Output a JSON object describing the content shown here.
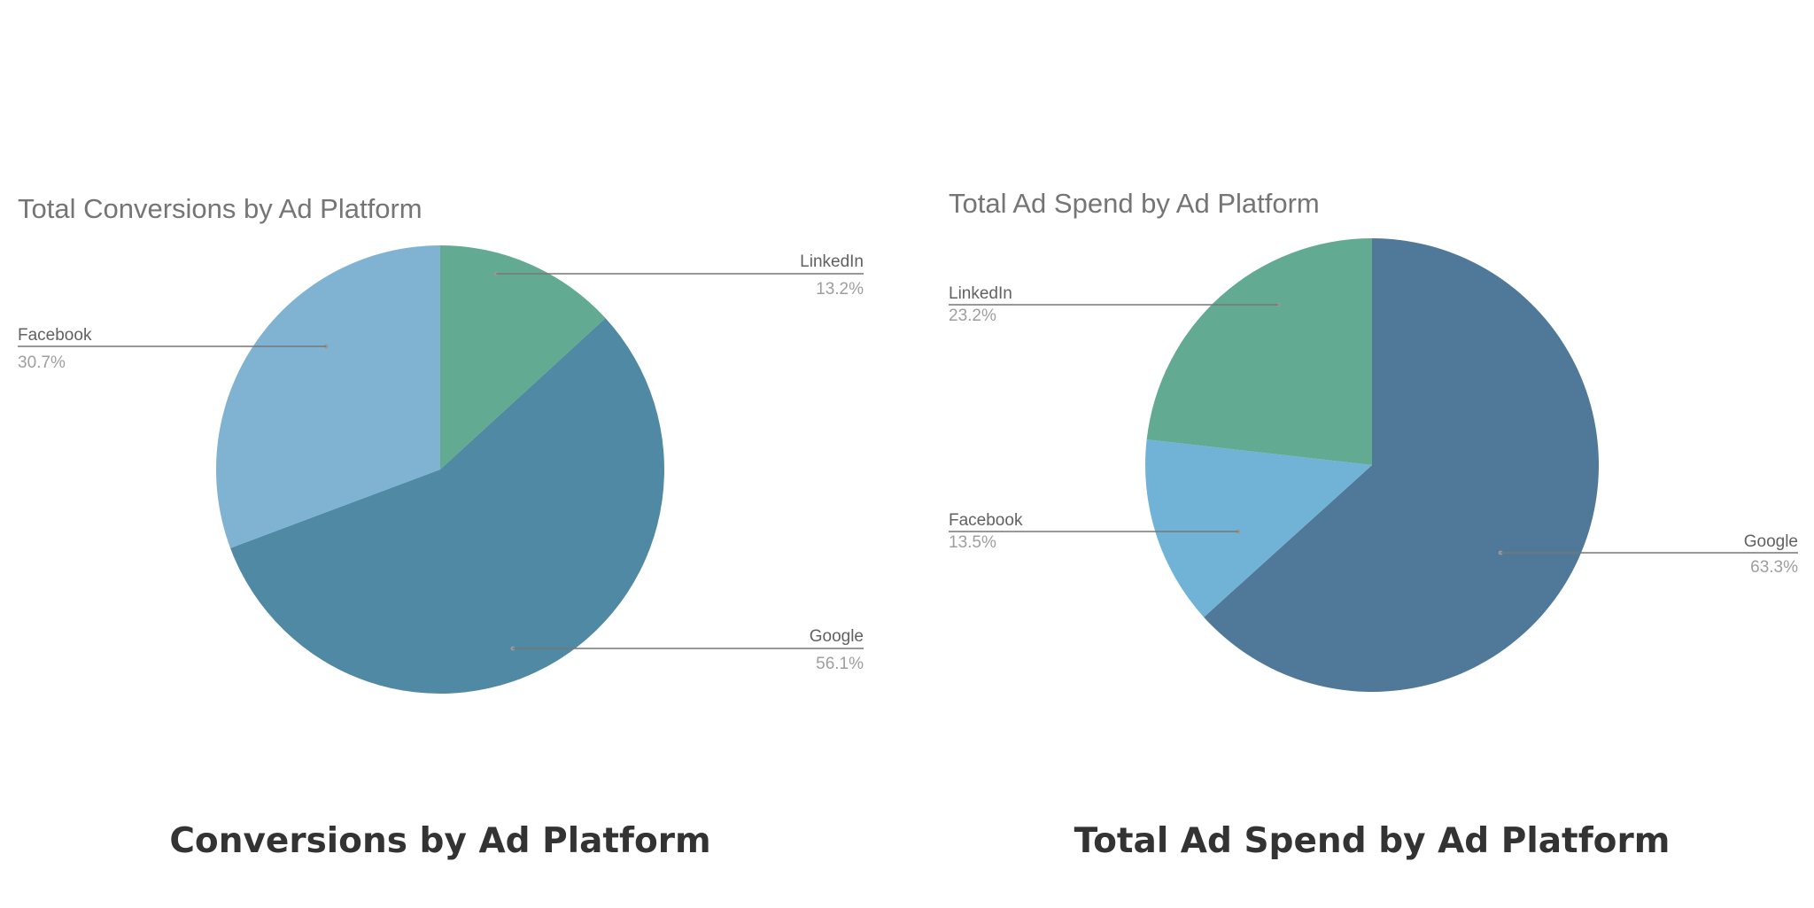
{
  "captions": [
    "Conversions by Ad Platform",
    "Total Ad Spend by Ad Platform"
  ],
  "chart_data": [
    {
      "type": "pie",
      "title": "Total Conversions by Ad Platform",
      "labels": [
        "LinkedIn",
        "Google",
        "Facebook"
      ],
      "values": [
        13.2,
        56.1,
        30.7
      ],
      "value_labels": [
        "13.2%",
        "56.1%",
        "30.7%"
      ],
      "colors": [
        "#63aa92",
        "#4f89a4",
        "#80b3d2"
      ],
      "start_angle_deg": 0,
      "direction": "clockwise"
    },
    {
      "type": "pie",
      "title": "Total Ad Spend by Ad Platform",
      "labels": [
        "Google",
        "Facebook",
        "LinkedIn"
      ],
      "values": [
        63.3,
        13.5,
        23.2
      ],
      "value_labels": [
        "63.3%",
        "13.5%",
        "23.2%"
      ],
      "colors": [
        "#507898",
        "#70b3d6",
        "#63aa92"
      ],
      "start_angle_deg": 0,
      "direction": "clockwise"
    }
  ]
}
